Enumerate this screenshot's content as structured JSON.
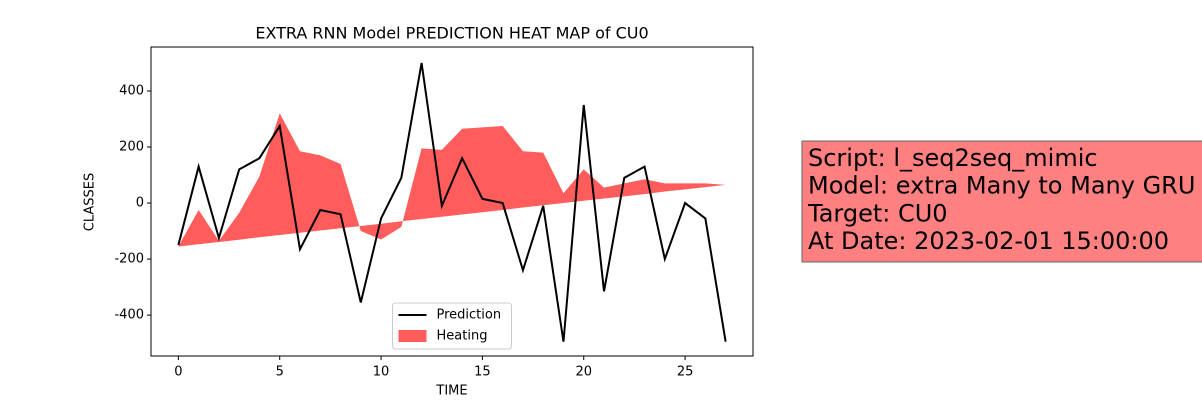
{
  "chart_data": {
    "type": "line",
    "title": "EXTRA RNN Model PREDICTION HEAT MAP of CU0",
    "xlabel": "TIME",
    "ylabel": "CLASSES",
    "x": [
      0,
      1,
      2,
      3,
      4,
      5,
      6,
      7,
      8,
      9,
      10,
      11,
      12,
      13,
      14,
      15,
      16,
      17,
      18,
      19,
      20,
      21,
      22,
      23,
      24,
      25,
      26,
      27
    ],
    "xlim": [
      -1.35,
      28.35
    ],
    "ylim": [
      -546,
      557
    ],
    "xticks": [
      0,
      5,
      10,
      15,
      20,
      25
    ],
    "yticks": [
      -400,
      -200,
      0,
      200,
      400
    ],
    "legend": "lower center",
    "series": [
      {
        "name": "Prediction",
        "type": "line",
        "color": "#000000",
        "values": [
          -150,
          130,
          -125,
          120,
          160,
          275,
          -165,
          -25,
          -40,
          -355,
          -55,
          90,
          500,
          -10,
          160,
          15,
          0,
          -240,
          -10,
          -495,
          350,
          -315,
          90,
          130,
          -200,
          0,
          -55,
          -495
        ]
      },
      {
        "name": "Heating",
        "type": "area",
        "color": "#ff3333",
        "values": [
          -155,
          -25,
          -135,
          -35,
          95,
          320,
          185,
          170,
          140,
          -100,
          -130,
          -85,
          195,
          190,
          265,
          270,
          275,
          185,
          180,
          35,
          120,
          55,
          70,
          85,
          70,
          70,
          70,
          65
        ],
        "base": [
          -155,
          -147,
          -139,
          -131,
          -122,
          -114,
          -106,
          -98,
          -90,
          -82,
          -74,
          -65,
          -57,
          -49,
          -41,
          -33,
          -25,
          -16,
          -8,
          0,
          8,
          16,
          24,
          32,
          41,
          49,
          57,
          65
        ]
      }
    ],
    "annotation": [
      "Script: l_seq2seq_mimic",
      "Model: extra Many to Many GRU",
      "Target: CU0",
      "At Date: 2023-02-01 15:00:00"
    ]
  }
}
